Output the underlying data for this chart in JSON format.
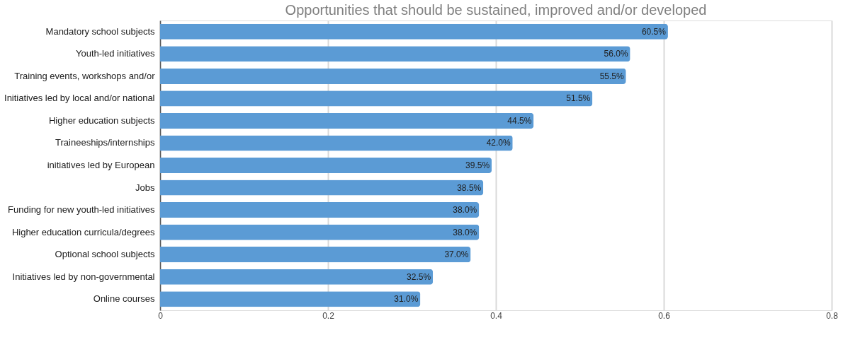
{
  "chart_data": {
    "type": "bar",
    "orientation": "horizontal",
    "title": "Opportunities that should be sustained, improved and/or developed",
    "categories": [
      "Mandatory school subjects",
      "Youth-led initiatives",
      "Training events, workshops and/or",
      "Initiatives led by local and/or national",
      "Higher education subjects",
      "Traineeships/internships",
      "initiatives led by European",
      "Jobs",
      "Funding for new youth-led initiatives",
      "Higher education curricula/degrees",
      "Optional school subjects",
      "Initiatives led by non-governmental",
      "Online courses"
    ],
    "values": [
      0.605,
      0.56,
      0.555,
      0.515,
      0.445,
      0.42,
      0.395,
      0.385,
      0.38,
      0.38,
      0.37,
      0.325,
      0.31
    ],
    "value_labels": [
      "60.5%",
      "56.0%",
      "55.5%",
      "51.5%",
      "44.5%",
      "42.0%",
      "39.5%",
      "38.5%",
      "38.0%",
      "38.0%",
      "37.0%",
      "32.5%",
      "31.0%"
    ],
    "color": "#5b9bd5",
    "xlim": [
      0,
      0.8
    ],
    "xticks": [
      0,
      0.2,
      0.4,
      0.6,
      0.8
    ],
    "grid": "x"
  }
}
